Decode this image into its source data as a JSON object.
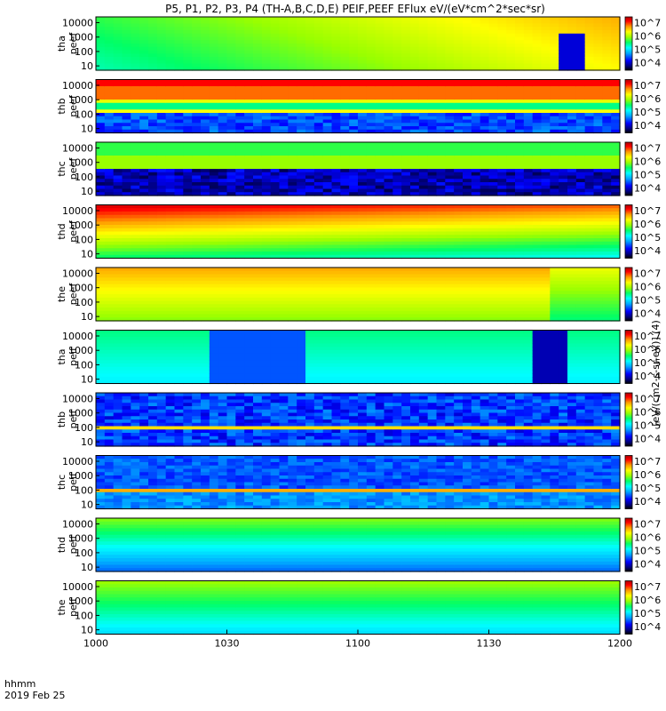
{
  "title": "P5, P1, P2, P3, P4 (TH-A,B,C,D,E) PEIF,PEEF EFlux eV/(eV*cm^2*sec*sr)",
  "colorbar_label": "[eV/(cm2-s-sr-eV)] (4)",
  "footer": {
    "time_label": "hhmm",
    "date_label": "2019 Feb 25"
  },
  "colors": {
    "stop_black": "#000000",
    "stop_navy": "#000080",
    "stop_blue": "#0000ff",
    "stop_deepsky": "#00aaff",
    "stop_cyan": "#00ffff",
    "stop_green": "#00ff66",
    "stop_lime": "#99ff00",
    "stop_yellow": "#ffff00",
    "stop_orange": "#ff9900",
    "stop_red": "#ff0000",
    "stop_darkred": "#aa0000"
  },
  "chart_data": {
    "type": "heatmap",
    "xlabel": "hhmm",
    "xticks": [
      "1000",
      "1030",
      "1100",
      "1130",
      "1200"
    ],
    "xlim": [
      0,
      120
    ],
    "yticks": [
      "10",
      "100",
      "1000",
      "10000"
    ],
    "ylim_log": [
      0.7,
      4.4
    ],
    "colorbar_ticks": [
      "10^4",
      "10^5",
      "10^6",
      "10^7"
    ],
    "panels": [
      {
        "label_top": "tha",
        "label_bot": "peef",
        "pattern": "tha_peef",
        "cb_ticks": [
          "10^4",
          "10^5",
          "10^6",
          "10^7"
        ]
      },
      {
        "label_top": "thb",
        "label_bot": "peef",
        "pattern": "thb_peef",
        "cb_ticks": [
          "10^4",
          "10^5",
          "10^6",
          "10^7"
        ]
      },
      {
        "label_top": "thc",
        "label_bot": "peef",
        "pattern": "thc_peef",
        "cb_ticks": [
          "10^4",
          "10^5",
          "10^6",
          "10^7"
        ]
      },
      {
        "label_top": "thd",
        "label_bot": "peef",
        "pattern": "thd_peef",
        "cb_ticks": [
          "10^4",
          "10^5",
          "10^6",
          "10^7"
        ]
      },
      {
        "label_top": "the",
        "label_bot": "peef",
        "pattern": "the_peef",
        "cb_ticks": [
          "10^4",
          "10^5",
          "10^6",
          "10^7"
        ]
      },
      {
        "label_top": "tha",
        "label_bot": "peif",
        "pattern": "tha_peif",
        "cb_ticks": [
          "10^4",
          "10^5",
          "10^6",
          "10^7"
        ]
      },
      {
        "label_top": "thb",
        "label_bot": "peif",
        "pattern": "thb_peif",
        "cb_ticks": [
          "10^4",
          "10^5",
          "10^6",
          "10^7"
        ]
      },
      {
        "label_top": "thc",
        "label_bot": "peif",
        "pattern": "thc_peif",
        "cb_ticks": [
          "10^4",
          "10^5",
          "10^6",
          "10^7"
        ]
      },
      {
        "label_top": "thd",
        "label_bot": "peif",
        "pattern": "thd_peif",
        "cb_ticks": [
          "10^4",
          "10^5",
          "10^6",
          "10^7"
        ]
      },
      {
        "label_top": "the",
        "label_bot": "peif",
        "pattern": "the_peif",
        "cb_ticks": [
          "10^4",
          "10^5",
          "10^6",
          "10^7"
        ]
      }
    ]
  }
}
